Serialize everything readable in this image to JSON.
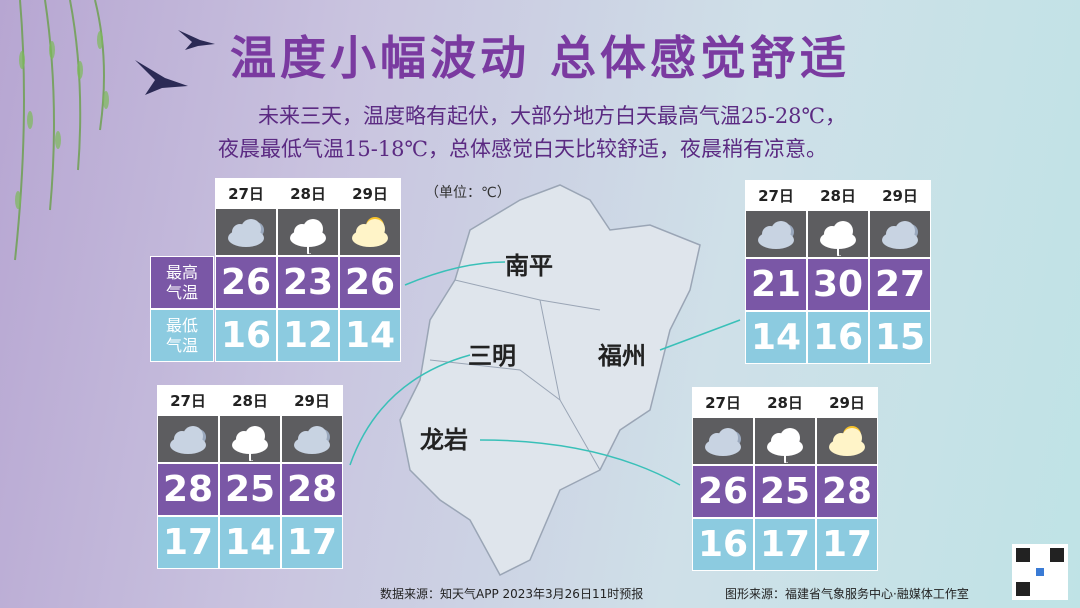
{
  "title": "温度小幅波动  总体感觉舒适",
  "subtitle": [
    "未来三天，温度略有起伏，大部分地方白天最高气温25-28℃，",
    "夜晨最低气温15-18℃，总体感觉白天比较舒适，夜晨稍有凉意。"
  ],
  "unit": "（单位：℃）",
  "row_labels": [
    "最高气温",
    "最低气温"
  ],
  "cities": [
    {
      "name": "南平",
      "days": [
        "27日",
        "28日",
        "29日"
      ],
      "icons": [
        "cloudy",
        "rain",
        "partly"
      ],
      "high": [
        26,
        23,
        26
      ],
      "low": [
        16,
        12,
        14
      ]
    },
    {
      "name": "福州",
      "days": [
        "27日",
        "28日",
        "29日"
      ],
      "icons": [
        "cloudy",
        "rain",
        "cloudy"
      ],
      "high": [
        21,
        30,
        27
      ],
      "low": [
        14,
        16,
        15
      ]
    },
    {
      "name": "三明",
      "days": [
        "27日",
        "28日",
        "29日"
      ],
      "icons": [
        "cloudy",
        "rain",
        "cloudy"
      ],
      "high": [
        28,
        25,
        28
      ],
      "low": [
        17,
        14,
        17
      ]
    },
    {
      "name": "龙岩",
      "days": [
        "27日",
        "28日",
        "29日"
      ],
      "icons": [
        "cloudy",
        "rain",
        "partly"
      ],
      "high": [
        26,
        25,
        28
      ],
      "low": [
        16,
        17,
        17
      ]
    }
  ],
  "footer": {
    "source": "数据来源：知天气APP  2023年3月26日11时预报",
    "credit": "图形来源：福建省气象服务中心·融媒体工作室"
  }
}
